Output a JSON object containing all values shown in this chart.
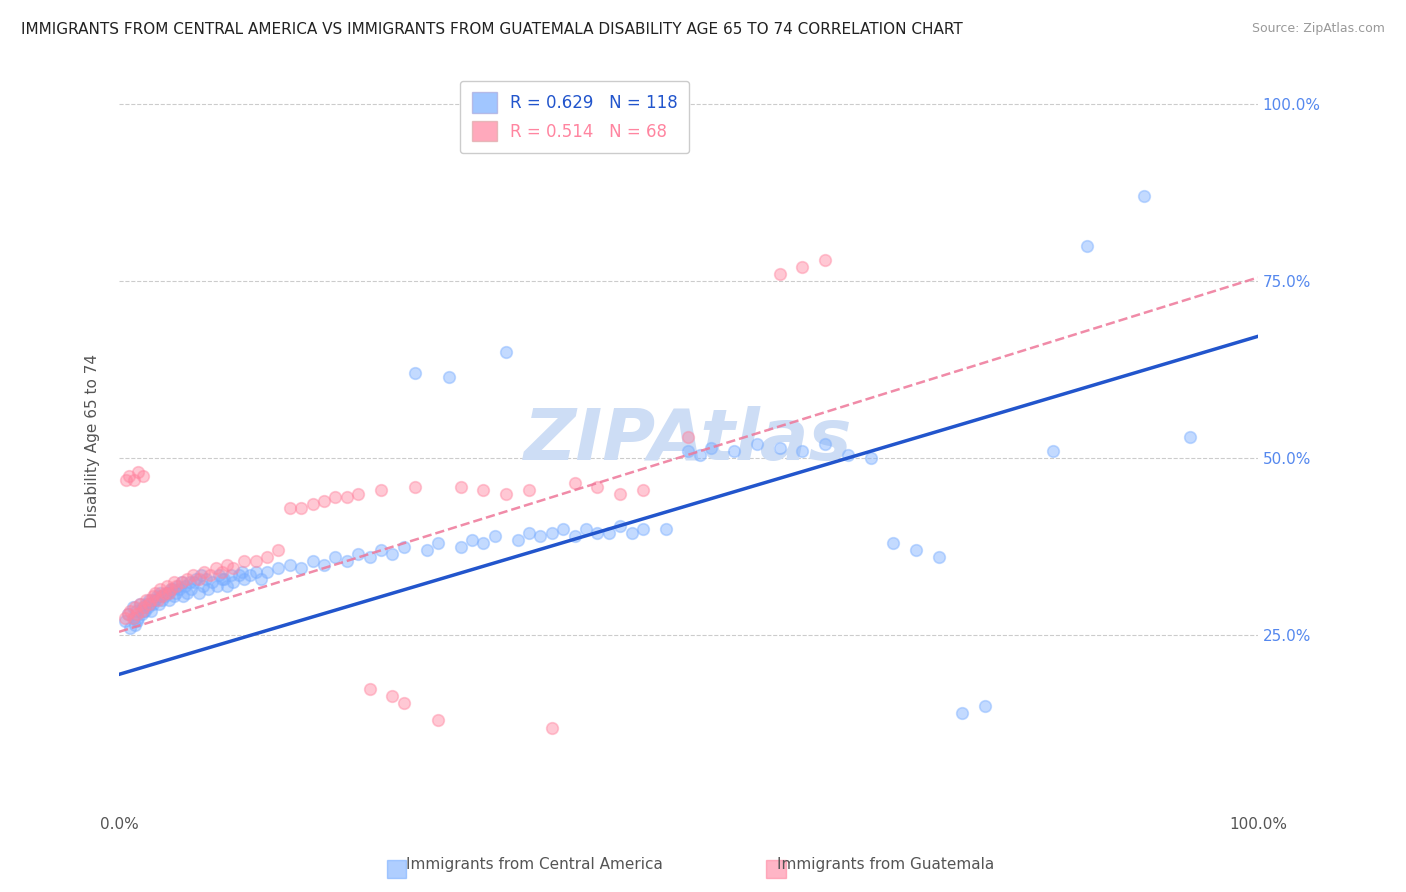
{
  "title": "IMMIGRANTS FROM CENTRAL AMERICA VS IMMIGRANTS FROM GUATEMALA DISABILITY AGE 65 TO 74 CORRELATION CHART",
  "source": "Source: ZipAtlas.com",
  "ylabel": "Disability Age 65 to 74",
  "watermark": "ZIPAtlas",
  "blue_color": "#7aaeff",
  "pink_color": "#ff85a0",
  "blue_line_color": "#2255cc",
  "pink_line_color": "#ee7799",
  "background_color": "#ffffff",
  "grid_color": "#cccccc",
  "title_fontsize": 11,
  "watermark_color": "#cdddf5",
  "watermark_fontsize": 52,
  "right_tick_color": "#5588ee",
  "ylim": [
    0.0,
    1.05
  ],
  "xlim": [
    0.0,
    1.0
  ],
  "blue_line_y_start": 0.195,
  "blue_line_y_end": 0.672,
  "pink_line_y_start": 0.255,
  "pink_line_y_end": 0.755,
  "blue_scatter_x": [
    0.005,
    0.008,
    0.01,
    0.012,
    0.013,
    0.015,
    0.016,
    0.018,
    0.02,
    0.021,
    0.022,
    0.024,
    0.025,
    0.026,
    0.028,
    0.03,
    0.031,
    0.033,
    0.035,
    0.036,
    0.038,
    0.04,
    0.042,
    0.044,
    0.046,
    0.048,
    0.05,
    0.053,
    0.056,
    0.058,
    0.06,
    0.063,
    0.066,
    0.07,
    0.074,
    0.078,
    0.082,
    0.086,
    0.09,
    0.095,
    0.1,
    0.105,
    0.11,
    0.115,
    0.12,
    0.125,
    0.13,
    0.14,
    0.15,
    0.16,
    0.17,
    0.18,
    0.19,
    0.2,
    0.21,
    0.22,
    0.23,
    0.24,
    0.25,
    0.26,
    0.27,
    0.28,
    0.29,
    0.3,
    0.31,
    0.32,
    0.33,
    0.34,
    0.35,
    0.36,
    0.37,
    0.38,
    0.39,
    0.4,
    0.41,
    0.42,
    0.43,
    0.44,
    0.45,
    0.46,
    0.48,
    0.5,
    0.51,
    0.52,
    0.54,
    0.56,
    0.58,
    0.6,
    0.62,
    0.64,
    0.66,
    0.68,
    0.7,
    0.72,
    0.74,
    0.76,
    0.82,
    0.85,
    0.9,
    0.94,
    0.014,
    0.017,
    0.023,
    0.027,
    0.032,
    0.037,
    0.043,
    0.047,
    0.052,
    0.055,
    0.062,
    0.068,
    0.072,
    0.076,
    0.088,
    0.092,
    0.098,
    0.108
  ],
  "blue_scatter_y": [
    0.27,
    0.28,
    0.26,
    0.29,
    0.275,
    0.285,
    0.27,
    0.295,
    0.28,
    0.29,
    0.285,
    0.295,
    0.29,
    0.3,
    0.285,
    0.295,
    0.3,
    0.305,
    0.295,
    0.31,
    0.3,
    0.305,
    0.31,
    0.3,
    0.315,
    0.305,
    0.31,
    0.315,
    0.305,
    0.32,
    0.31,
    0.315,
    0.325,
    0.31,
    0.32,
    0.315,
    0.325,
    0.32,
    0.33,
    0.32,
    0.325,
    0.335,
    0.33,
    0.335,
    0.34,
    0.33,
    0.34,
    0.345,
    0.35,
    0.345,
    0.355,
    0.35,
    0.36,
    0.355,
    0.365,
    0.36,
    0.37,
    0.365,
    0.375,
    0.62,
    0.37,
    0.38,
    0.615,
    0.375,
    0.385,
    0.38,
    0.39,
    0.65,
    0.385,
    0.395,
    0.39,
    0.395,
    0.4,
    0.39,
    0.4,
    0.395,
    0.395,
    0.405,
    0.395,
    0.4,
    0.4,
    0.51,
    0.505,
    0.515,
    0.51,
    0.52,
    0.515,
    0.51,
    0.52,
    0.505,
    0.5,
    0.38,
    0.37,
    0.36,
    0.14,
    0.15,
    0.51,
    0.8,
    0.87,
    0.53,
    0.265,
    0.275,
    0.285,
    0.295,
    0.3,
    0.305,
    0.31,
    0.315,
    0.32,
    0.325,
    0.325,
    0.33,
    0.335,
    0.33,
    0.335,
    0.33,
    0.335,
    0.34
  ],
  "pink_scatter_x": [
    0.005,
    0.008,
    0.01,
    0.012,
    0.014,
    0.016,
    0.018,
    0.02,
    0.022,
    0.024,
    0.026,
    0.028,
    0.03,
    0.032,
    0.034,
    0.036,
    0.038,
    0.04,
    0.042,
    0.044,
    0.046,
    0.048,
    0.05,
    0.055,
    0.06,
    0.065,
    0.07,
    0.075,
    0.08,
    0.085,
    0.09,
    0.095,
    0.1,
    0.11,
    0.12,
    0.13,
    0.14,
    0.15,
    0.16,
    0.17,
    0.18,
    0.19,
    0.2,
    0.21,
    0.22,
    0.23,
    0.24,
    0.25,
    0.26,
    0.28,
    0.3,
    0.32,
    0.34,
    0.36,
    0.38,
    0.4,
    0.42,
    0.44,
    0.46,
    0.5,
    0.58,
    0.6,
    0.62,
    0.006,
    0.009,
    0.013,
    0.017,
    0.021
  ],
  "pink_scatter_y": [
    0.275,
    0.28,
    0.285,
    0.275,
    0.29,
    0.28,
    0.295,
    0.285,
    0.29,
    0.3,
    0.295,
    0.3,
    0.305,
    0.31,
    0.3,
    0.315,
    0.305,
    0.31,
    0.32,
    0.31,
    0.315,
    0.325,
    0.32,
    0.325,
    0.33,
    0.335,
    0.33,
    0.34,
    0.335,
    0.345,
    0.34,
    0.35,
    0.345,
    0.355,
    0.355,
    0.36,
    0.37,
    0.43,
    0.43,
    0.435,
    0.44,
    0.445,
    0.445,
    0.45,
    0.175,
    0.455,
    0.165,
    0.155,
    0.46,
    0.13,
    0.46,
    0.455,
    0.45,
    0.455,
    0.12,
    0.465,
    0.46,
    0.45,
    0.455,
    0.53,
    0.76,
    0.77,
    0.78,
    0.47,
    0.475,
    0.47,
    0.48,
    0.475
  ]
}
